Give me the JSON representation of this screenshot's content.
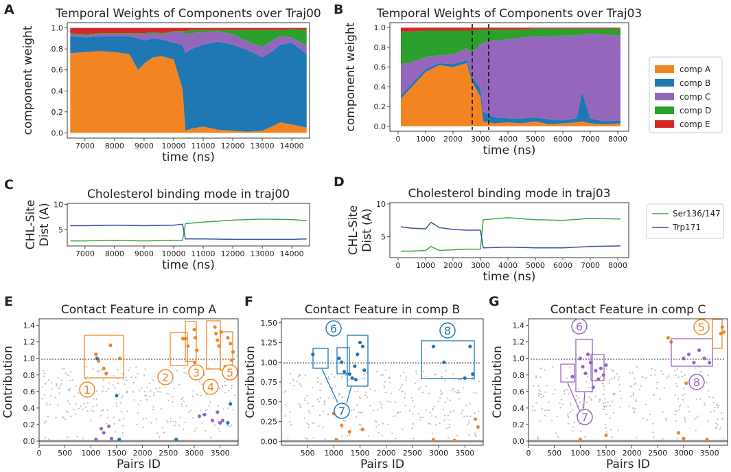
{
  "colors": {
    "comp_a": "#f28522",
    "comp_b": "#1f77b4",
    "comp_c": "#9467bd",
    "comp_d": "#2ca02c",
    "comp_e": "#d62728",
    "ser": "#3aa845",
    "trp": "#3b4fa6",
    "grey": "#9a9a9a"
  },
  "panels": {
    "A": "A",
    "B": "B",
    "C": "C",
    "D": "D",
    "E": "E",
    "F": "F",
    "G": "G"
  },
  "chart_data": [
    {
      "id": "A",
      "type": "area",
      "title": "Temporal Weights of Components over Traj00",
      "xlabel": "time (ns)",
      "ylabel": "component weight",
      "xlim": [
        6400,
        14600
      ],
      "ylim": [
        -0.05,
        1.05
      ],
      "xticks": [
        7000,
        8000,
        9000,
        10000,
        11000,
        12000,
        13000,
        14000
      ],
      "yticks": [
        0.0,
        0.2,
        0.4,
        0.6,
        0.8,
        1.0
      ],
      "x": [
        6500,
        7000,
        7500,
        8000,
        8500,
        8800,
        9000,
        9300,
        9600,
        10000,
        10300,
        10400,
        10600,
        11000,
        11500,
        12000,
        12500,
        13000,
        13400,
        13600,
        14000,
        14500
      ],
      "series": [
        {
          "name": "comp A",
          "values": [
            0.76,
            0.77,
            0.78,
            0.77,
            0.75,
            0.6,
            0.66,
            0.72,
            0.73,
            0.7,
            0.42,
            0.02,
            0.04,
            0.06,
            0.03,
            0.02,
            0.01,
            0.02,
            0.07,
            0.1,
            0.08,
            0.05
          ]
        },
        {
          "name": "comp B",
          "values": [
            0.16,
            0.14,
            0.14,
            0.15,
            0.17,
            0.3,
            0.22,
            0.18,
            0.16,
            0.16,
            0.42,
            0.74,
            0.76,
            0.78,
            0.84,
            0.82,
            0.78,
            0.7,
            0.72,
            0.74,
            0.78,
            0.7
          ]
        },
        {
          "name": "comp C",
          "values": [
            0.02,
            0.02,
            0.02,
            0.02,
            0.02,
            0.04,
            0.06,
            0.05,
            0.05,
            0.1,
            0.12,
            0.18,
            0.15,
            0.12,
            0.1,
            0.1,
            0.08,
            0.1,
            0.1,
            0.08,
            0.05,
            0.08
          ]
        },
        {
          "name": "comp D",
          "values": [
            0.01,
            0.01,
            0.01,
            0.01,
            0.01,
            0.01,
            0.01,
            0.01,
            0.01,
            0.01,
            0.01,
            0.03,
            0.03,
            0.02,
            0.01,
            0.04,
            0.11,
            0.16,
            0.09,
            0.06,
            0.08,
            0.15
          ]
        },
        {
          "name": "comp E",
          "values": [
            0.05,
            0.06,
            0.05,
            0.05,
            0.05,
            0.05,
            0.05,
            0.04,
            0.05,
            0.03,
            0.03,
            0.03,
            0.02,
            0.02,
            0.02,
            0.02,
            0.02,
            0.02,
            0.02,
            0.02,
            0.01,
            0.02
          ]
        }
      ]
    },
    {
      "id": "B",
      "type": "area",
      "title": "Temporal Weights of Components over Traj03",
      "xlabel": "time (ns)",
      "ylabel": "component weight",
      "xlim": [
        -300,
        8400
      ],
      "ylim": [
        -0.05,
        1.05
      ],
      "xticks": [
        0,
        1000,
        2000,
        3000,
        4000,
        5000,
        6000,
        7000,
        8000
      ],
      "yticks": [
        0.0,
        0.2,
        0.4,
        0.6,
        0.8,
        1.0
      ],
      "vlines": [
        2700,
        3300
      ],
      "legend": [
        "comp A",
        "comp B",
        "comp C",
        "comp D",
        "comp E"
      ],
      "x": [
        100,
        500,
        1000,
        1500,
        2000,
        2500,
        2700,
        3000,
        3100,
        3500,
        4000,
        4500,
        5000,
        5500,
        6000,
        6500,
        6700,
        7000,
        7500,
        8100
      ],
      "series": [
        {
          "name": "comp A",
          "values": [
            0.28,
            0.4,
            0.55,
            0.62,
            0.6,
            0.64,
            0.45,
            0.3,
            0.05,
            0.03,
            0.04,
            0.03,
            0.05,
            0.02,
            0.03,
            0.04,
            0.05,
            0.03,
            0.02,
            0.03
          ]
        },
        {
          "name": "comp B",
          "values": [
            0.03,
            0.03,
            0.03,
            0.02,
            0.03,
            0.03,
            0.05,
            0.08,
            0.1,
            0.06,
            0.04,
            0.05,
            0.04,
            0.05,
            0.03,
            0.04,
            0.3,
            0.05,
            0.03,
            0.03
          ]
        },
        {
          "name": "comp C",
          "values": [
            0.32,
            0.22,
            0.12,
            0.08,
            0.1,
            0.12,
            0.25,
            0.45,
            0.7,
            0.78,
            0.8,
            0.82,
            0.82,
            0.84,
            0.86,
            0.84,
            0.58,
            0.86,
            0.88,
            0.86
          ]
        },
        {
          "name": "comp D",
          "values": [
            0.33,
            0.31,
            0.27,
            0.25,
            0.24,
            0.18,
            0.22,
            0.15,
            0.13,
            0.11,
            0.1,
            0.08,
            0.08,
            0.08,
            0.07,
            0.07,
            0.06,
            0.05,
            0.06,
            0.07
          ]
        },
        {
          "name": "comp E",
          "values": [
            0.04,
            0.04,
            0.03,
            0.03,
            0.03,
            0.03,
            0.03,
            0.02,
            0.02,
            0.02,
            0.02,
            0.02,
            0.01,
            0.01,
            0.01,
            0.01,
            0.01,
            0.01,
            0.01,
            0.01
          ]
        }
      ]
    },
    {
      "id": "C",
      "type": "line",
      "title": "Cholesterol binding mode in traj00",
      "xlabel": "time (ns)",
      "ylabel": "CHL-Site Dist (A)",
      "ylabel_lines": [
        "CHL-Site",
        "Dist (A)"
      ],
      "xlim": [
        6400,
        14600
      ],
      "ylim": [
        1.8,
        10.2
      ],
      "xticks": [
        7000,
        8000,
        9000,
        10000,
        11000,
        12000,
        13000,
        14000
      ],
      "yticks": [
        5,
        10
      ],
      "x": [
        6500,
        7000,
        8000,
        9000,
        10000,
        10300,
        10400,
        11000,
        12000,
        13000,
        14000,
        14500
      ],
      "series": [
        {
          "name": "Ser136/147",
          "values": [
            2.8,
            2.8,
            2.9,
            2.8,
            2.9,
            2.9,
            6.2,
            6.5,
            6.9,
            7.1,
            7.0,
            6.8
          ]
        },
        {
          "name": "Trp171",
          "values": [
            5.8,
            5.8,
            5.9,
            5.8,
            5.9,
            6.1,
            3.2,
            3.2,
            3.1,
            3.1,
            3.1,
            3.2
          ]
        }
      ]
    },
    {
      "id": "D",
      "type": "line",
      "title": "Cholesterol binding mode in traj03",
      "xlabel": "time (ns)",
      "ylabel": "CHL-Site Dist (A)",
      "ylabel_lines": [
        "CHL-Site",
        "Dist (A)"
      ],
      "xlim": [
        -300,
        8400
      ],
      "ylim": [
        1.8,
        10.2
      ],
      "xticks": [
        0,
        1000,
        2000,
        3000,
        4000,
        5000,
        6000,
        7000,
        8000
      ],
      "yticks": [
        5,
        10
      ],
      "legend": [
        "Ser136/147",
        "Trp171"
      ],
      "x": [
        100,
        500,
        1000,
        1200,
        1500,
        2000,
        2500,
        3000,
        3100,
        4000,
        5000,
        6000,
        7000,
        8100
      ],
      "series": [
        {
          "name": "Ser136/147",
          "values": [
            2.8,
            2.8,
            2.9,
            3.5,
            2.9,
            3.0,
            3.1,
            3.1,
            7.6,
            7.9,
            7.6,
            7.5,
            7.8,
            7.7
          ]
        },
        {
          "name": "Trp171",
          "values": [
            6.5,
            6.3,
            6.2,
            7.2,
            6.4,
            6.1,
            6.0,
            6.0,
            3.3,
            3.4,
            3.3,
            3.3,
            3.5,
            3.6
          ]
        }
      ]
    },
    {
      "id": "E",
      "type": "scatter",
      "title": "Contact Feature in comp A",
      "xlabel": "Pairs ID",
      "ylabel": "Contribution",
      "xlim": [
        0,
        3850
      ],
      "ylim": [
        -0.05,
        1.48
      ],
      "xticks": [
        0,
        500,
        1000,
        1500,
        2000,
        2500,
        3000,
        3500
      ],
      "yticks": [
        0.0,
        0.2,
        0.4,
        0.6,
        0.8,
        1.0,
        1.2,
        1.4
      ],
      "points": [
        {
          "x": 1100,
          "y": 1.05,
          "c": "A"
        },
        {
          "x": 1150,
          "y": 0.97,
          "c": "A"
        },
        {
          "x": 1250,
          "y": 0.88,
          "c": "A"
        },
        {
          "x": 1300,
          "y": 0.82,
          "c": "A"
        },
        {
          "x": 1380,
          "y": 1.16,
          "c": "A"
        },
        {
          "x": 1560,
          "y": 1.0,
          "c": "A"
        },
        {
          "x": 1120,
          "y": 1.0,
          "c": "B"
        },
        {
          "x": 1500,
          "y": 0.55,
          "c": "B"
        },
        {
          "x": 1550,
          "y": 0.02,
          "c": "B"
        },
        {
          "x": 2650,
          "y": 0.02,
          "c": "B"
        },
        {
          "x": 3700,
          "y": 0.45,
          "c": "B"
        },
        {
          "x": 3650,
          "y": 0.22,
          "c": "B"
        },
        {
          "x": 2780,
          "y": 1.24,
          "c": "A"
        },
        {
          "x": 2830,
          "y": 1.24,
          "c": "A"
        },
        {
          "x": 2880,
          "y": 1.15,
          "c": "A"
        },
        {
          "x": 3000,
          "y": 1.35,
          "c": "A"
        },
        {
          "x": 3020,
          "y": 1.25,
          "c": "A"
        },
        {
          "x": 3050,
          "y": 1.1,
          "c": "A"
        },
        {
          "x": 3010,
          "y": 0.95,
          "c": "A"
        },
        {
          "x": 3060,
          "y": 0.88,
          "c": "A"
        },
        {
          "x": 3400,
          "y": 1.38,
          "c": "A"
        },
        {
          "x": 3420,
          "y": 1.3,
          "c": "A"
        },
        {
          "x": 3450,
          "y": 1.22,
          "c": "A"
        },
        {
          "x": 3480,
          "y": 1.15,
          "c": "A"
        },
        {
          "x": 3520,
          "y": 1.32,
          "c": "A"
        },
        {
          "x": 3650,
          "y": 1.25,
          "c": "A"
        },
        {
          "x": 3700,
          "y": 1.18,
          "c": "A"
        },
        {
          "x": 3750,
          "y": 1.08,
          "c": "A"
        },
        {
          "x": 3720,
          "y": 0.98,
          "c": "A"
        },
        {
          "x": 3600,
          "y": 0.9,
          "c": "A"
        },
        {
          "x": 1200,
          "y": 0.15,
          "c": "C"
        },
        {
          "x": 1250,
          "y": 0.1,
          "c": "C"
        },
        {
          "x": 1350,
          "y": 0.18,
          "c": "C"
        },
        {
          "x": 1400,
          "y": 0.03,
          "c": "C"
        },
        {
          "x": 1100,
          "y": 0.02,
          "c": "C"
        },
        {
          "x": 3100,
          "y": 0.3,
          "c": "C"
        },
        {
          "x": 3200,
          "y": 0.32,
          "c": "C"
        },
        {
          "x": 3350,
          "y": 0.25,
          "c": "C"
        },
        {
          "x": 3450,
          "y": 0.35,
          "c": "C"
        },
        {
          "x": 3550,
          "y": 0.25,
          "c": "C"
        },
        {
          "x": 3500,
          "y": 0.22,
          "c": "C"
        }
      ],
      "annotations": [
        "1",
        "2",
        "3",
        "4",
        "5"
      ]
    },
    {
      "id": "F",
      "type": "scatter",
      "title": "Contact Feature in comp B",
      "xlabel": "Pairs ID",
      "ylabel": "Contribution",
      "xlim": [
        0,
        3850
      ],
      "ylim": [
        -0.05,
        1.55
      ],
      "xticks": [
        500,
        1000,
        1500,
        2000,
        2500,
        3000,
        3500
      ],
      "yticks": [
        0.0,
        0.25,
        0.5,
        0.75,
        1.0,
        1.25,
        1.5
      ],
      "points": [
        {
          "x": 600,
          "y": 1.1,
          "c": "B"
        },
        {
          "x": 1100,
          "y": 1.05,
          "c": "B"
        },
        {
          "x": 1150,
          "y": 1.0,
          "c": "B"
        },
        {
          "x": 1200,
          "y": 0.88,
          "c": "B"
        },
        {
          "x": 1300,
          "y": 0.85,
          "c": "B"
        },
        {
          "x": 1350,
          "y": 0.8,
          "c": "B"
        },
        {
          "x": 1400,
          "y": 0.95,
          "c": "B"
        },
        {
          "x": 1450,
          "y": 1.1,
          "c": "B"
        },
        {
          "x": 1500,
          "y": 1.25,
          "c": "B"
        },
        {
          "x": 1550,
          "y": 1.2,
          "c": "B"
        },
        {
          "x": 1580,
          "y": 0.9,
          "c": "B"
        },
        {
          "x": 1420,
          "y": 0.78,
          "c": "B"
        },
        {
          "x": 2900,
          "y": 1.2,
          "c": "B"
        },
        {
          "x": 3100,
          "y": 1.0,
          "c": "B"
        },
        {
          "x": 3600,
          "y": 1.2,
          "c": "B"
        },
        {
          "x": 3650,
          "y": 0.85,
          "c": "B"
        },
        {
          "x": 3500,
          "y": 0.8,
          "c": "B"
        },
        {
          "x": 1000,
          "y": 0.35,
          "c": "A"
        },
        {
          "x": 1150,
          "y": 0.2,
          "c": "A"
        },
        {
          "x": 1300,
          "y": 0.12,
          "c": "A"
        },
        {
          "x": 1550,
          "y": 0.15,
          "c": "A"
        },
        {
          "x": 1050,
          "y": 0.02,
          "c": "A"
        },
        {
          "x": 2900,
          "y": 0.02,
          "c": "A"
        },
        {
          "x": 3300,
          "y": 0.01,
          "c": "A"
        },
        {
          "x": 3700,
          "y": 0.28,
          "c": "A"
        },
        {
          "x": 3750,
          "y": 0.18,
          "c": "A"
        }
      ],
      "annotations": [
        "6",
        "7",
        "8"
      ]
    },
    {
      "id": "G",
      "type": "scatter",
      "title": "Contact Feature in comp C",
      "xlabel": "Pairs ID",
      "ylabel": "Contribution",
      "xlim": [
        0,
        3850
      ],
      "ylim": [
        -0.05,
        1.48
      ],
      "xticks": [
        0,
        500,
        1000,
        1500,
        2000,
        2500,
        3000,
        3500
      ],
      "yticks": [
        0.0,
        0.2,
        0.4,
        0.6,
        0.8,
        1.0,
        1.2,
        1.4
      ],
      "points": [
        {
          "x": 850,
          "y": 0.78,
          "c": "C"
        },
        {
          "x": 1000,
          "y": 1.0,
          "c": "C"
        },
        {
          "x": 1050,
          "y": 0.9,
          "c": "C"
        },
        {
          "x": 1100,
          "y": 0.82,
          "c": "C"
        },
        {
          "x": 1150,
          "y": 1.05,
          "c": "C"
        },
        {
          "x": 1200,
          "y": 0.95,
          "c": "C"
        },
        {
          "x": 1300,
          "y": 0.85,
          "c": "C"
        },
        {
          "x": 1350,
          "y": 0.75,
          "c": "C"
        },
        {
          "x": 1400,
          "y": 0.88,
          "c": "C"
        },
        {
          "x": 1450,
          "y": 0.8,
          "c": "C"
        },
        {
          "x": 1500,
          "y": 0.92,
          "c": "C"
        },
        {
          "x": 1250,
          "y": 0.65,
          "c": "C"
        },
        {
          "x": 3000,
          "y": 1.0,
          "c": "C"
        },
        {
          "x": 3100,
          "y": 1.05,
          "c": "C"
        },
        {
          "x": 3200,
          "y": 0.95,
          "c": "C"
        },
        {
          "x": 3300,
          "y": 1.1,
          "c": "C"
        },
        {
          "x": 3400,
          "y": 1.0,
          "c": "C"
        },
        {
          "x": 3500,
          "y": 0.95,
          "c": "C"
        },
        {
          "x": 2700,
          "y": 1.25,
          "c": "A"
        },
        {
          "x": 2760,
          "y": 1.2,
          "c": "A"
        },
        {
          "x": 3750,
          "y": 1.38,
          "c": "A"
        },
        {
          "x": 3780,
          "y": 1.32,
          "c": "A"
        },
        {
          "x": 3720,
          "y": 1.3,
          "c": "A"
        },
        {
          "x": 1100,
          "y": 0.32,
          "c": "A"
        },
        {
          "x": 1500,
          "y": 0.07,
          "c": "A"
        },
        {
          "x": 3050,
          "y": 0.7,
          "c": "A"
        },
        {
          "x": 2900,
          "y": 0.1,
          "c": "A"
        },
        {
          "x": 3000,
          "y": 0.03,
          "c": "A"
        },
        {
          "x": 3450,
          "y": 0.02,
          "c": "A"
        },
        {
          "x": 1000,
          "y": 0.02,
          "c": "A"
        }
      ],
      "annotations": [
        "5",
        "6",
        "7",
        "8"
      ]
    }
  ]
}
